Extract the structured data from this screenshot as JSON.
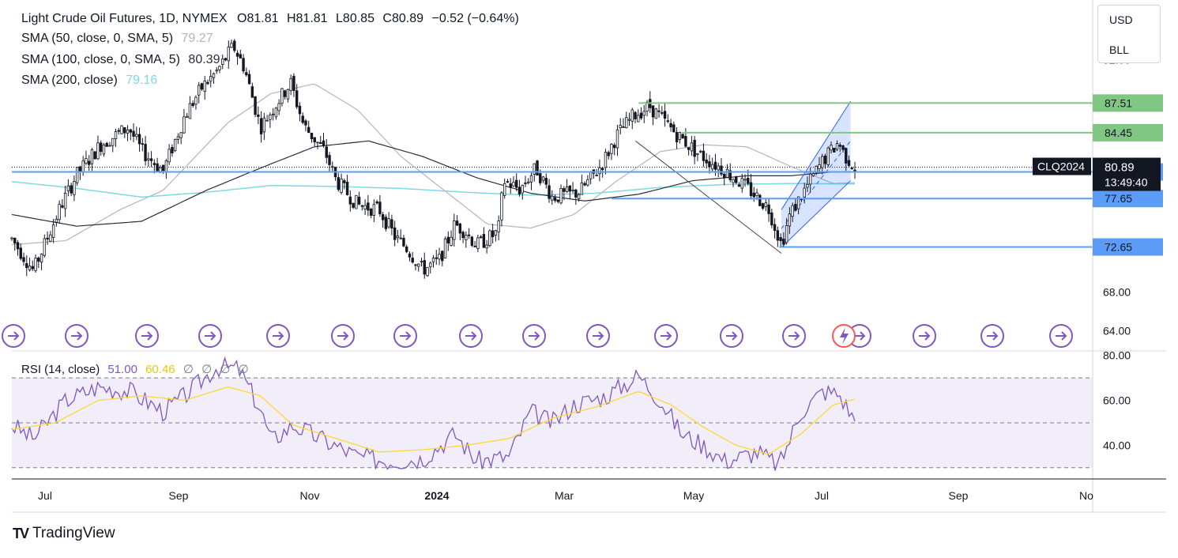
{
  "header": {
    "symbol": "Light Crude Oil Futures, 1D, NYMEX",
    "ohlc": {
      "open_label": "O",
      "open": "81.81",
      "high_label": "H",
      "high": "81.81",
      "low_label": "L",
      "low": "80.85",
      "close_label": "C",
      "close": "80.89",
      "change": "−0.52 (−0.64%)"
    },
    "indicators": [
      {
        "label": "SMA (50, close, 0, SMA, 5)",
        "value": "79.27",
        "color": "#b2b5be"
      },
      {
        "label": "SMA (100, close, 0, SMA, 5)",
        "value": "80.39",
        "color": "#2a2e39"
      },
      {
        "label": "SMA (200, close)",
        "value": "79.16",
        "color": "#7fd8e6"
      }
    ]
  },
  "unit_selector": {
    "currency": "USD",
    "unit": "BLL"
  },
  "rsi_legend": {
    "label": "RSI (14, close)",
    "value": "51.00",
    "ma_value": "60.46",
    "extras": [
      "∅",
      "∅",
      "∅",
      "∅"
    ]
  },
  "branding": {
    "logo": "TV",
    "name": "TradingView"
  },
  "colors": {
    "price_line": "#131722",
    "sma50": "#b2b5be",
    "sma100": "#2a2e39",
    "sma200": "#7fd8e6",
    "support": "#5b9cf6",
    "resistance": "#81c784",
    "rsi": "#7e57c2",
    "rsi_ma": "#fdd835",
    "channel": "#2962ff",
    "event_icon": "#7e57c2"
  },
  "chart_data": [
    {
      "type": "candlestick",
      "name": "CLQ2024",
      "x_range": [
        "2024-06-01",
        "2024-10-31"
      ],
      "ylim": [
        62.0,
        97.5
      ],
      "y_ticks": [
        64.0,
        68.0,
        92.0
      ],
      "x_ticks": [
        "Jul",
        "Sep",
        "Nov",
        "2024",
        "Mar",
        "May",
        "Jul",
        "Sep",
        "No"
      ],
      "last_price": {
        "label": "CLQ2024",
        "value": "80.89",
        "countdown": "13:49:40"
      },
      "horizontal_levels": [
        {
          "value": 87.51,
          "label": "87.51",
          "kind": "resistance"
        },
        {
          "value": 84.45,
          "label": "84.45",
          "kind": "resistance"
        },
        {
          "value": 80.4,
          "label": "80.40",
          "kind": "support"
        },
        {
          "value": 77.65,
          "label": "77.65",
          "kind": "support"
        },
        {
          "value": 72.65,
          "label": "72.65",
          "kind": "support"
        }
      ],
      "trend_segments": [
        {
          "from": [
            0.577,
            83.6
          ],
          "to": [
            0.712,
            72.0
          ]
        }
      ],
      "channel": {
        "lower_from": [
          0.712,
          72.6
        ],
        "lower_to": [
          0.776,
          79.5
        ],
        "upper_from": [
          0.712,
          76.5
        ],
        "upper_to": [
          0.776,
          87.7
        ]
      },
      "key_points": [
        [
          0.0,
          73.5
        ],
        [
          0.02,
          70.2
        ],
        [
          0.045,
          76.8
        ],
        [
          0.06,
          80.1
        ],
        [
          0.082,
          83.2
        ],
        [
          0.108,
          85.0
        ],
        [
          0.12,
          82.6
        ],
        [
          0.14,
          80.5
        ],
        [
          0.16,
          86.2
        ],
        [
          0.175,
          89.0
        ],
        [
          0.19,
          90.8
        ],
        [
          0.205,
          93.4
        ],
        [
          0.215,
          91.2
        ],
        [
          0.23,
          85.0
        ],
        [
          0.245,
          87.5
        ],
        [
          0.258,
          89.6
        ],
        [
          0.27,
          85.2
        ],
        [
          0.29,
          82.4
        ],
        [
          0.3,
          79.5
        ],
        [
          0.32,
          77.0
        ],
        [
          0.34,
          76.5
        ],
        [
          0.355,
          73.6
        ],
        [
          0.365,
          72.6
        ],
        [
          0.38,
          70.3
        ],
        [
          0.395,
          71.2
        ],
        [
          0.41,
          75.0
        ],
        [
          0.42,
          74.2
        ],
        [
          0.43,
          72.8
        ],
        [
          0.45,
          74.2
        ],
        [
          0.455,
          79.5
        ],
        [
          0.47,
          78.6
        ],
        [
          0.485,
          80.8
        ],
        [
          0.5,
          77.8
        ],
        [
          0.525,
          78.3
        ],
        [
          0.545,
          81.0
        ],
        [
          0.56,
          84.2
        ],
        [
          0.575,
          86.2
        ],
        [
          0.59,
          87.2
        ],
        [
          0.615,
          84.3
        ],
        [
          0.635,
          82.3
        ],
        [
          0.66,
          80.5
        ],
        [
          0.68,
          78.8
        ],
        [
          0.7,
          76.7
        ],
        [
          0.712,
          72.9
        ],
        [
          0.72,
          76.0
        ],
        [
          0.735,
          78.8
        ],
        [
          0.75,
          81.5
        ],
        [
          0.765,
          83.5
        ],
        [
          0.77,
          82.2
        ],
        [
          0.78,
          80.9
        ]
      ],
      "sma50_points": [
        [
          0.0,
          72.9
        ],
        [
          0.05,
          73.3
        ],
        [
          0.1,
          76.5
        ],
        [
          0.14,
          78.5
        ],
        [
          0.17,
          82.0
        ],
        [
          0.2,
          85.5
        ],
        [
          0.24,
          88.5
        ],
        [
          0.28,
          89.5
        ],
        [
          0.32,
          86.8
        ],
        [
          0.36,
          82.0
        ],
        [
          0.4,
          78.5
        ],
        [
          0.44,
          75.0
        ],
        [
          0.48,
          74.6
        ],
        [
          0.52,
          76.0
        ],
        [
          0.56,
          79.5
        ],
        [
          0.6,
          82.5
        ],
        [
          0.64,
          83.2
        ],
        [
          0.68,
          83.0
        ],
        [
          0.72,
          81.0
        ],
        [
          0.76,
          79.2
        ],
        [
          0.78,
          79.3
        ]
      ],
      "sma100_points": [
        [
          0.0,
          76.0
        ],
        [
          0.06,
          74.8
        ],
        [
          0.12,
          75.3
        ],
        [
          0.18,
          78.5
        ],
        [
          0.23,
          80.8
        ],
        [
          0.28,
          83.0
        ],
        [
          0.33,
          83.6
        ],
        [
          0.38,
          82.0
        ],
        [
          0.43,
          79.8
        ],
        [
          0.48,
          78.2
        ],
        [
          0.53,
          77.4
        ],
        [
          0.58,
          78.1
        ],
        [
          0.63,
          79.5
        ],
        [
          0.68,
          80.0
        ],
        [
          0.72,
          80.0
        ],
        [
          0.76,
          80.4
        ],
        [
          0.78,
          80.4
        ]
      ],
      "sma200_points": [
        [
          0.0,
          79.4
        ],
        [
          0.06,
          78.7
        ],
        [
          0.12,
          77.8
        ],
        [
          0.18,
          78.3
        ],
        [
          0.24,
          79.0
        ],
        [
          0.3,
          78.9
        ],
        [
          0.36,
          78.7
        ],
        [
          0.42,
          78.3
        ],
        [
          0.48,
          78.0
        ],
        [
          0.54,
          78.2
        ],
        [
          0.6,
          78.8
        ],
        [
          0.66,
          79.1
        ],
        [
          0.72,
          79.2
        ],
        [
          0.78,
          79.16
        ]
      ]
    },
    {
      "type": "line",
      "name": "RSI",
      "ylim": [
        25,
        82
      ],
      "y_ticks": [
        40.0,
        60.0,
        80.0
      ],
      "bands": [
        30,
        50,
        70
      ],
      "key_points": [
        [
          0.0,
          49
        ],
        [
          0.02,
          43
        ],
        [
          0.05,
          60
        ],
        [
          0.08,
          66
        ],
        [
          0.11,
          64
        ],
        [
          0.14,
          55
        ],
        [
          0.16,
          62
        ],
        [
          0.19,
          75
        ],
        [
          0.21,
          74
        ],
        [
          0.23,
          56
        ],
        [
          0.24,
          42
        ],
        [
          0.26,
          49
        ],
        [
          0.29,
          42
        ],
        [
          0.32,
          35
        ],
        [
          0.35,
          33
        ],
        [
          0.38,
          34
        ],
        [
          0.41,
          45
        ],
        [
          0.43,
          33
        ],
        [
          0.46,
          35
        ],
        [
          0.48,
          55
        ],
        [
          0.5,
          50
        ],
        [
          0.52,
          58
        ],
        [
          0.55,
          62
        ],
        [
          0.58,
          71
        ],
        [
          0.6,
          60
        ],
        [
          0.62,
          45
        ],
        [
          0.64,
          40
        ],
        [
          0.66,
          33
        ],
        [
          0.69,
          37
        ],
        [
          0.71,
          31
        ],
        [
          0.73,
          55
        ],
        [
          0.75,
          64
        ],
        [
          0.765,
          63
        ],
        [
          0.78,
          51
        ]
      ],
      "ma_points": [
        [
          0.0,
          47
        ],
        [
          0.04,
          50
        ],
        [
          0.08,
          60
        ],
        [
          0.12,
          62
        ],
        [
          0.16,
          60
        ],
        [
          0.2,
          66
        ],
        [
          0.23,
          62
        ],
        [
          0.26,
          49
        ],
        [
          0.3,
          43
        ],
        [
          0.34,
          37
        ],
        [
          0.38,
          38
        ],
        [
          0.42,
          40
        ],
        [
          0.46,
          43
        ],
        [
          0.5,
          52
        ],
        [
          0.54,
          57
        ],
        [
          0.58,
          64
        ],
        [
          0.61,
          58
        ],
        [
          0.64,
          48
        ],
        [
          0.67,
          40
        ],
        [
          0.7,
          36
        ],
        [
          0.73,
          45
        ],
        [
          0.76,
          58
        ],
        [
          0.78,
          60.46
        ]
      ]
    }
  ]
}
